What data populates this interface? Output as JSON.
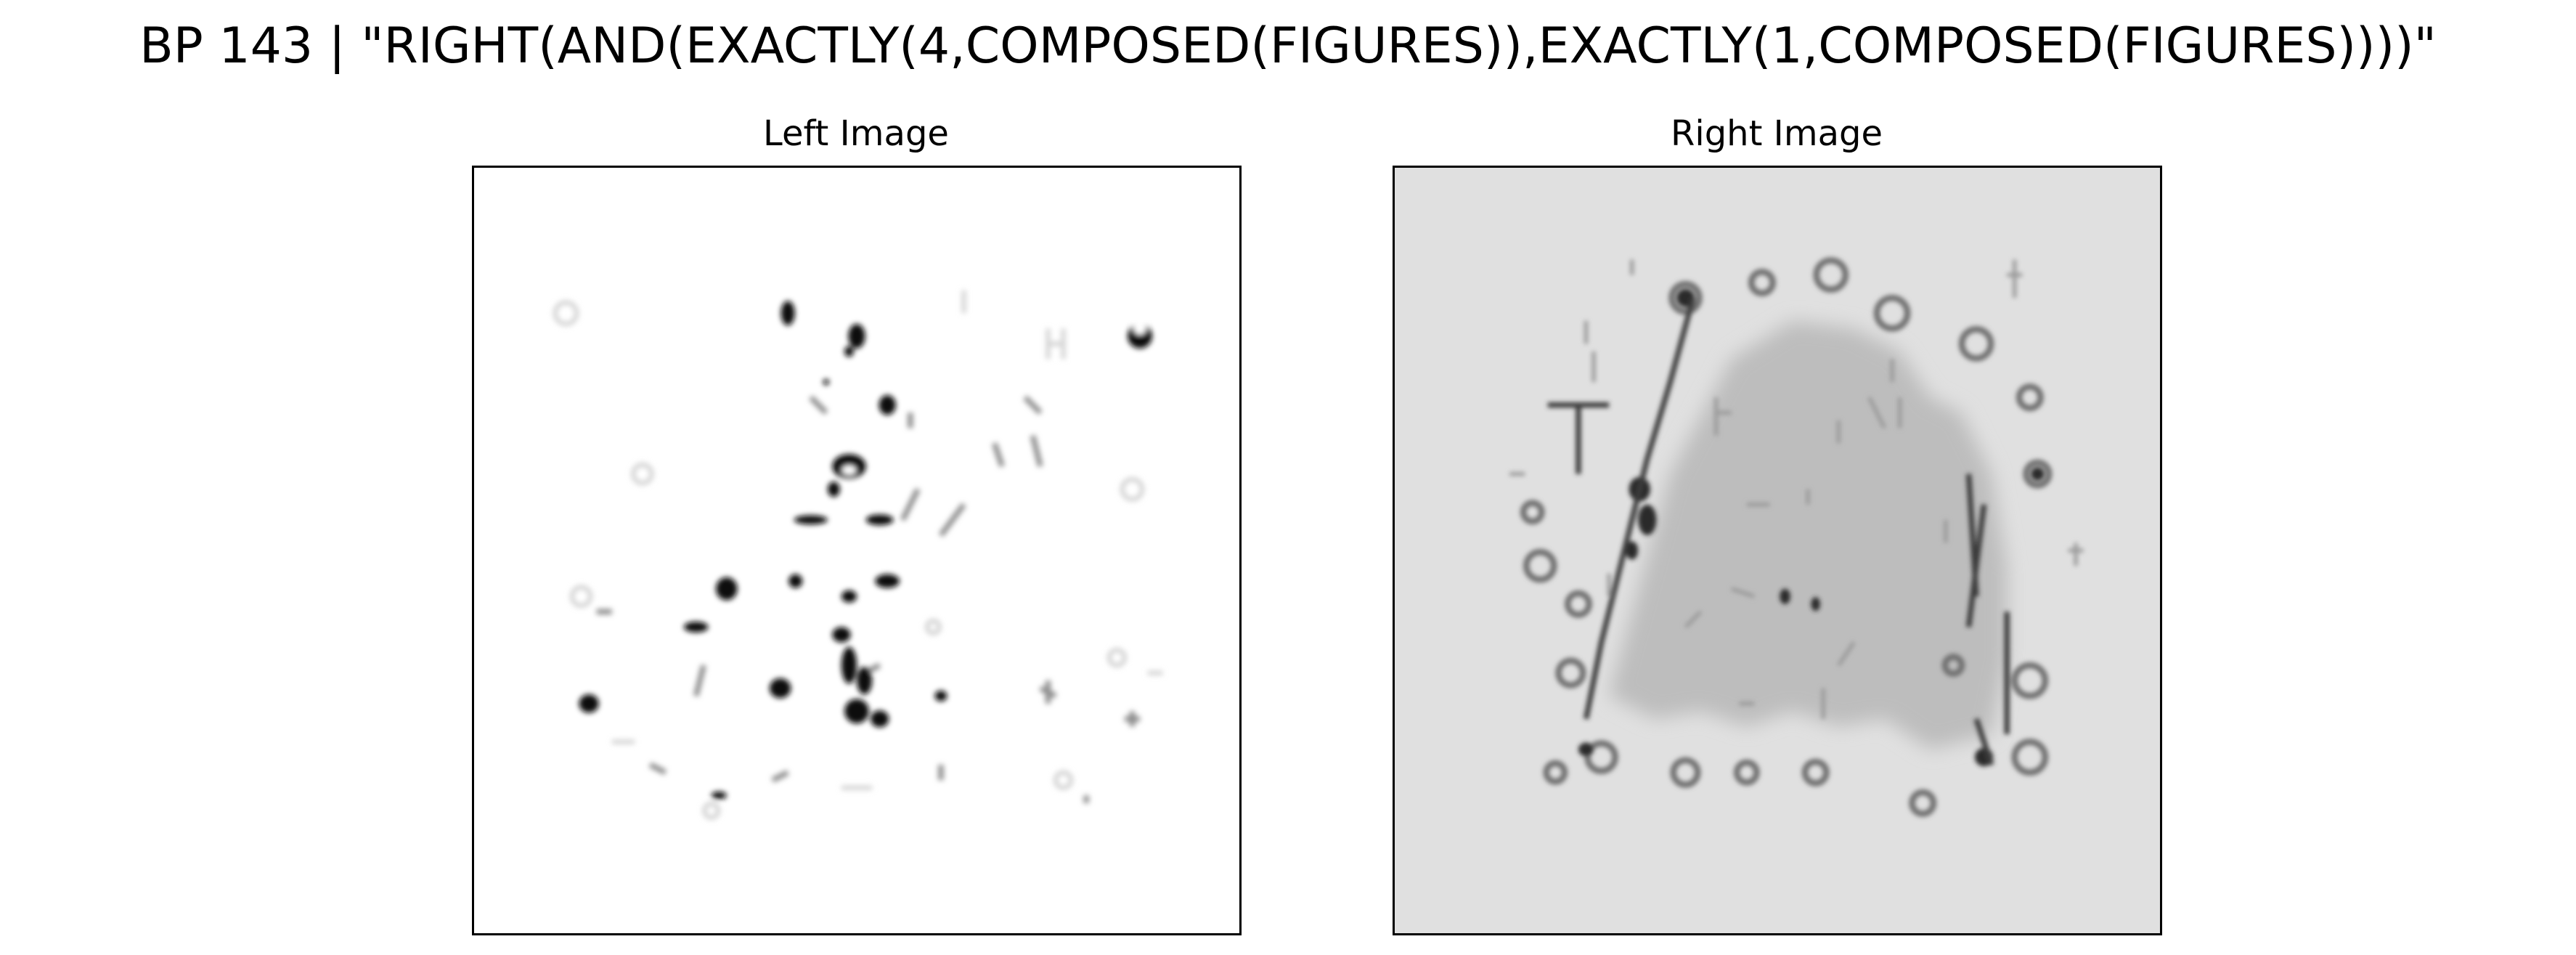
{
  "figure": {
    "title": "BP 143 | \"RIGHT(AND(EXACTLY(4,COMPOSED(FIGURES)),EXACTLY(1,COMPOSED(FIGURES))))\""
  },
  "panels": {
    "left": {
      "title": "Left Image",
      "background": "#ffffff"
    },
    "right": {
      "title": "Right Image",
      "background": "#e0e0e0"
    }
  },
  "colors": {
    "ink": "#000000",
    "dark_blob": "#111111",
    "light_blob": "#bdbdbd",
    "faint_stroke": "#9a9a9a"
  }
}
